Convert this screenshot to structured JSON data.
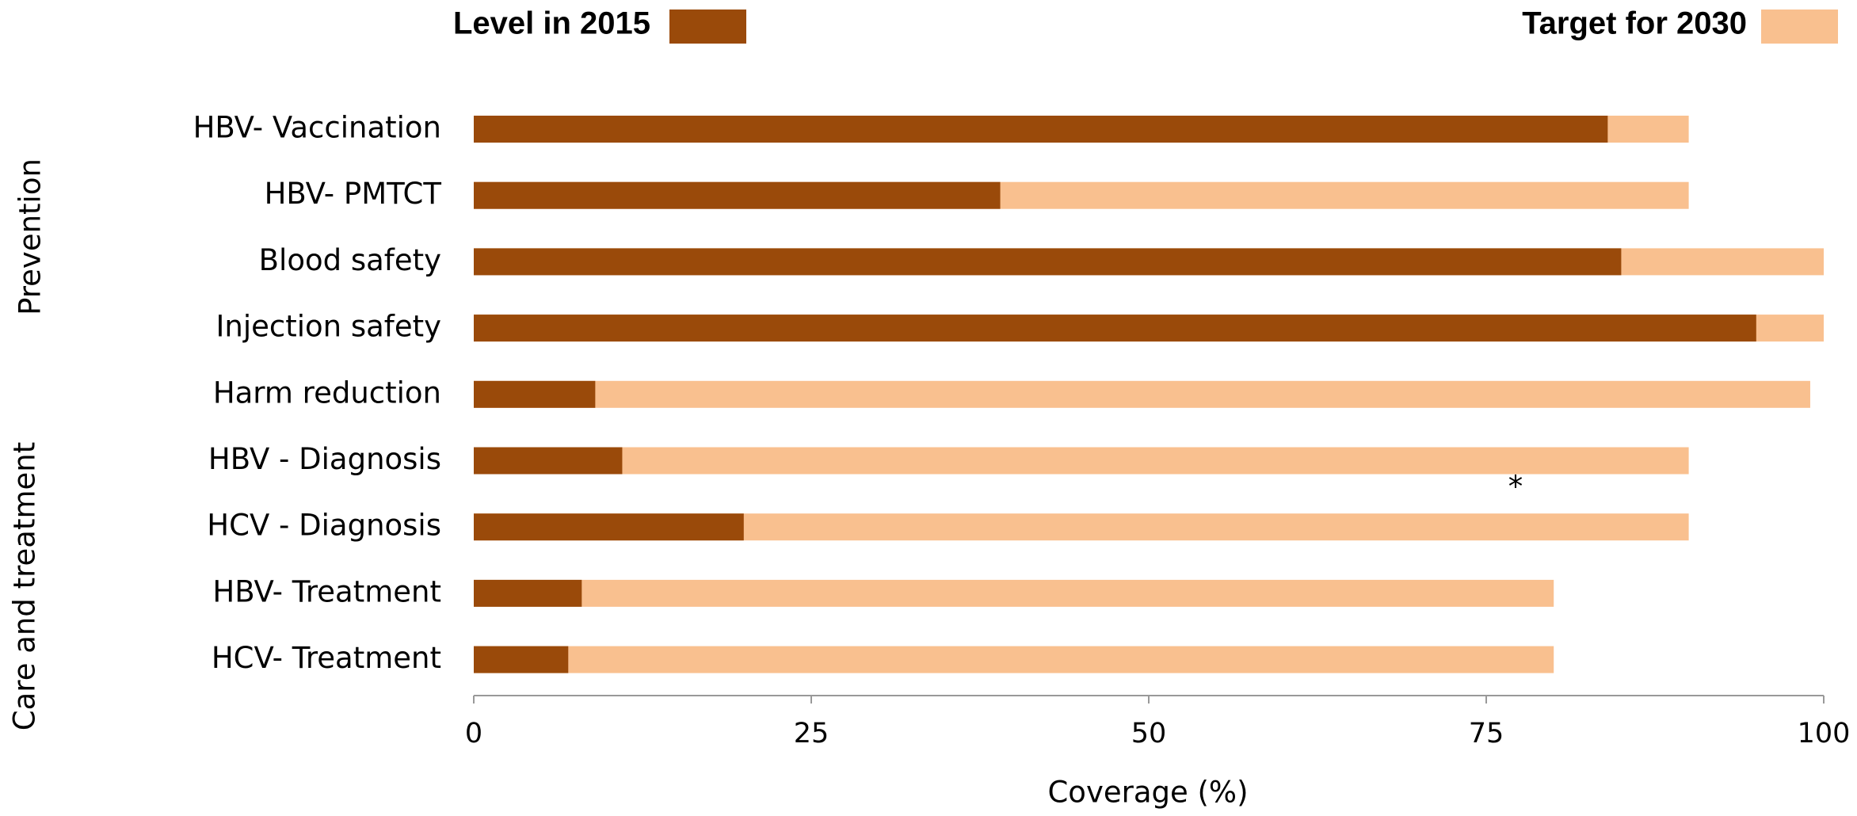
{
  "chart_data": {
    "type": "bar",
    "orientation": "horizontal",
    "x_label": "Coverage (%)",
    "categories": [
      "HBV- Vaccination",
      "HBV- PMTCT",
      "Blood safety",
      "Injection safety",
      "Harm reduction",
      "HBV - Diagnosis",
      "HCV - Diagnosis",
      "HBV- Treatment",
      "HCV- Treatment"
    ],
    "groups": [
      "Prevention",
      "Care and treatment"
    ],
    "series": [
      {
        "name": "Target for 2030",
        "color": "#f9c08f",
        "values": [
          90,
          90,
          100,
          100,
          99,
          90,
          90,
          80,
          80
        ]
      },
      {
        "name": "Level in 2015",
        "color": "#9a4a0a",
        "values": [
          84,
          39,
          85,
          95,
          9,
          11,
          20,
          8,
          7
        ]
      }
    ],
    "annotation": "*",
    "xlim": [
      0,
      100
    ],
    "xticks": [
      0,
      25,
      50,
      75,
      100
    ],
    "grid": false
  }
}
